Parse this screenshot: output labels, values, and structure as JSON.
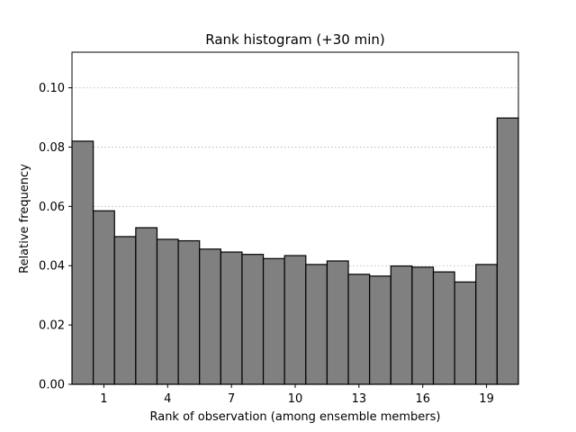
{
  "chart_data": {
    "type": "bar",
    "title": "Rank histogram (+30 min)",
    "xlabel": "Rank of observation (among ensemble members)",
    "ylabel": "Relative frequency",
    "categories": [
      0,
      1,
      2,
      3,
      4,
      5,
      6,
      7,
      8,
      9,
      10,
      11,
      12,
      13,
      14,
      15,
      16,
      17,
      18,
      19,
      20
    ],
    "values": [
      0.082,
      0.0585,
      0.0498,
      0.0528,
      0.0489,
      0.0484,
      0.0456,
      0.0446,
      0.0438,
      0.0424,
      0.0434,
      0.0404,
      0.0416,
      0.0371,
      0.0365,
      0.0399,
      0.0395,
      0.0379,
      0.0345,
      0.0404,
      0.0898
    ],
    "xticks": [
      1,
      4,
      7,
      10,
      13,
      16,
      19
    ],
    "yticks": [
      0.0,
      0.02,
      0.04,
      0.06,
      0.08,
      0.1
    ],
    "ytick_labels": [
      "0.00",
      "0.02",
      "0.04",
      "0.06",
      "0.08",
      "0.10"
    ],
    "xlim": [
      -0.5,
      20.5
    ],
    "ylim": [
      0,
      0.112
    ],
    "grid": "y-dotted",
    "bar_color": "#808080",
    "edge_color": "#000000"
  }
}
